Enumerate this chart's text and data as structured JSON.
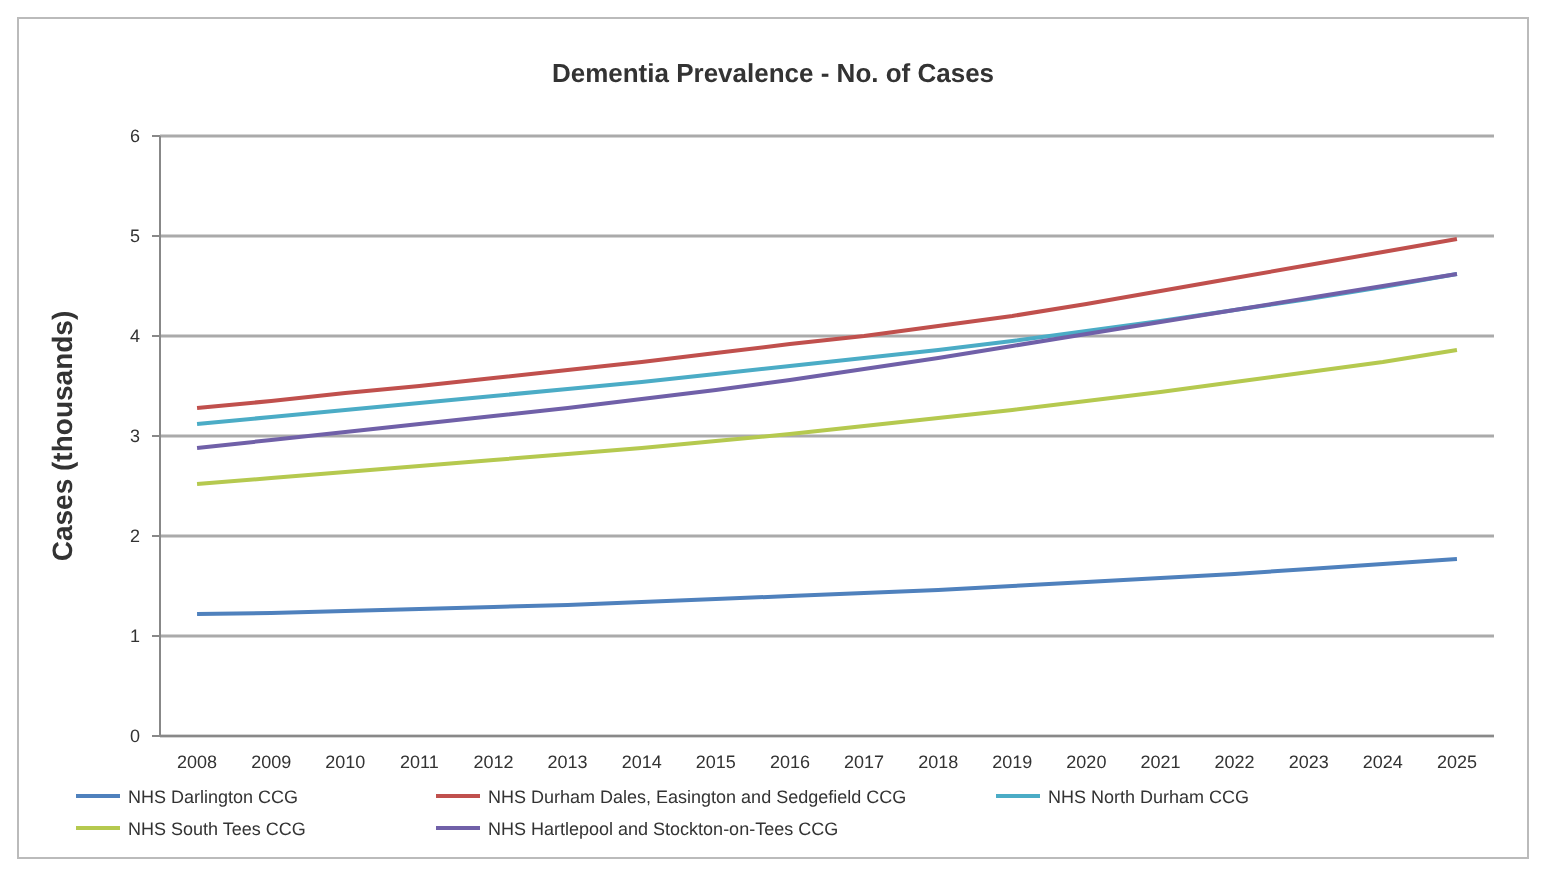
{
  "chart_data": {
    "type": "line",
    "title": "Dementia Prevalence - No. of Cases",
    "ylabel": "Cases (thousands)",
    "categories": [
      "2008",
      "2009",
      "2010",
      "2011",
      "2012",
      "2013",
      "2014",
      "2015",
      "2016",
      "2017",
      "2018",
      "2019",
      "2020",
      "2021",
      "2022",
      "2023",
      "2024",
      "2025"
    ],
    "series": [
      {
        "name": "NHS Darlington CCG",
        "color": "#4f81bd",
        "values": [
          1.22,
          1.23,
          1.25,
          1.27,
          1.29,
          1.31,
          1.34,
          1.37,
          1.4,
          1.43,
          1.46,
          1.5,
          1.54,
          1.58,
          1.62,
          1.67,
          1.72,
          1.77
        ]
      },
      {
        "name": "NHS Durham Dales, Easington and Sedgefield CCG",
        "color": "#c0504d",
        "values": [
          3.28,
          3.35,
          3.43,
          3.5,
          3.58,
          3.66,
          3.74,
          3.83,
          3.92,
          4.0,
          4.1,
          4.2,
          4.32,
          4.45,
          4.58,
          4.71,
          4.84,
          4.97
        ]
      },
      {
        "name": "NHS North Durham CCG",
        "color": "#4bacc6",
        "values": [
          3.12,
          3.19,
          3.26,
          3.33,
          3.4,
          3.47,
          3.54,
          3.62,
          3.7,
          3.78,
          3.86,
          3.95,
          4.05,
          4.15,
          4.26,
          4.37,
          4.49,
          4.62
        ]
      },
      {
        "name": "NHS South Tees CCG",
        "color": "#b5c94f",
        "values": [
          2.52,
          2.58,
          2.64,
          2.7,
          2.76,
          2.82,
          2.88,
          2.95,
          3.02,
          3.1,
          3.18,
          3.26,
          3.35,
          3.44,
          3.54,
          3.64,
          3.74,
          3.86
        ]
      },
      {
        "name": "NHS Hartlepool and Stockton-on-Tees CCG",
        "color": "#7060a8",
        "values": [
          2.88,
          2.96,
          3.04,
          3.12,
          3.2,
          3.28,
          3.37,
          3.46,
          3.56,
          3.67,
          3.78,
          3.9,
          4.02,
          4.14,
          4.26,
          4.38,
          4.5,
          4.62
        ]
      }
    ],
    "ylim": [
      0,
      6
    ],
    "yticks": [
      0,
      1,
      2,
      3,
      4,
      5,
      6
    ],
    "grid": "y",
    "legend": "bottom",
    "marker": "none",
    "line_style": "solid"
  }
}
